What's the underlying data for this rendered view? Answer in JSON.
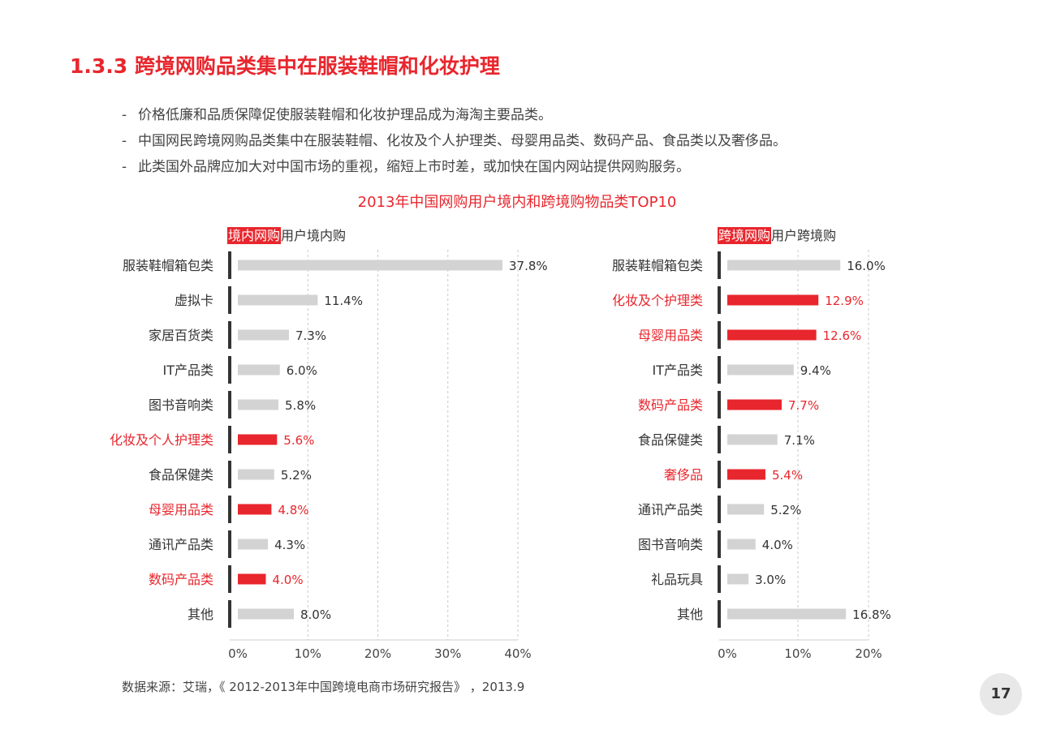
{
  "page": {
    "title": "1.3.3 跨境网购品类集中在服装鞋帽和化妆护理",
    "bullets": [
      "价格低廉和品质保障促使服装鞋帽和化妆护理品成为海淘主要品类。",
      "中国网民跨境网购品类集中在服装鞋帽、化妆及个人护理类、母婴用品类、数码产品、食品类以及奢侈品。",
      "此类国外品牌应加大对中国市场的重视，缩短上市时差，或加快在国内网站提供网购服务。"
    ],
    "bullet_marker": "-",
    "source": "数据来源：艾瑞，《 2012-2013年中国跨境电商市场研究报告》 ，2013.9",
    "page_number": "17"
  },
  "colors": {
    "accent": "#e8262d",
    "bar": "#d3d3d3",
    "axis": "#333333"
  },
  "chart_data": [
    {
      "type": "bar",
      "orientation": "horizontal",
      "title": "2013年中国网购用户境内和跨境购物品类TOP10",
      "tag": "境内网购",
      "subtitle": "用户境内购",
      "categories": [
        "服装鞋帽箱包类",
        "虚拟卡",
        "家居百货类",
        "IT产品类",
        "图书音响类",
        "化妆及个人护理类",
        "食品保健类",
        "母婴用品类",
        "通讯产品类",
        "数码产品类",
        "其他"
      ],
      "values": [
        37.8,
        11.4,
        7.3,
        6.0,
        5.8,
        5.6,
        5.2,
        4.8,
        4.3,
        4.0,
        8.0
      ],
      "labels": [
        "37.8%",
        "11.4%",
        "7.3%",
        "6.0%",
        "5.8%",
        "5.6%",
        "5.2%",
        "4.8%",
        "4.3%",
        "4.0%",
        "8.0%"
      ],
      "highlight": [
        false,
        false,
        false,
        false,
        false,
        true,
        false,
        true,
        false,
        true,
        false
      ],
      "xlim": [
        0,
        40
      ],
      "xticks": [
        "0%",
        "10%",
        "20%",
        "30%",
        "40%"
      ],
      "grid": true
    },
    {
      "type": "bar",
      "orientation": "horizontal",
      "tag": "跨境网购",
      "subtitle": "用户跨境购",
      "categories": [
        "服装鞋帽箱包类",
        "化妆及个护理类",
        "母婴用品类",
        "IT产品类",
        "数码产品类",
        "食品保健类",
        "奢侈品",
        "通讯产品类",
        "图书音响类",
        "礼品玩具",
        "其他"
      ],
      "values": [
        16.0,
        12.9,
        12.6,
        9.4,
        7.7,
        7.1,
        5.4,
        5.2,
        4.0,
        3.0,
        16.8
      ],
      "labels": [
        "16.0%",
        "12.9%",
        "12.6%",
        "9.4%",
        "7.7%",
        "7.1%",
        "5.4%",
        "5.2%",
        "4.0%",
        "3.0%",
        "16.8%"
      ],
      "highlight": [
        false,
        true,
        true,
        false,
        true,
        false,
        true,
        false,
        false,
        false,
        false
      ],
      "xlim": [
        0,
        20
      ],
      "xticks": [
        "0%",
        "10%",
        "20%"
      ],
      "grid": true
    }
  ]
}
